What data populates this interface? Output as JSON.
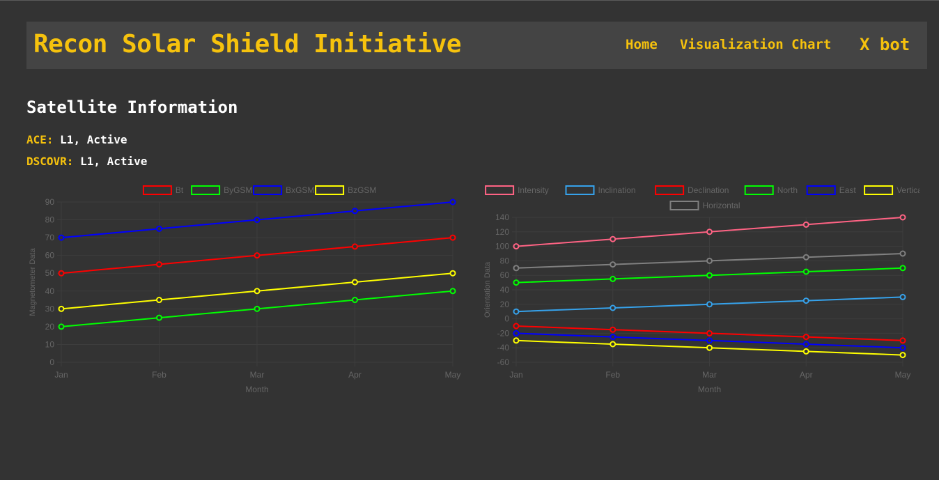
{
  "header": {
    "brand": "Recon Solar Shield Initiative",
    "nav": {
      "home": "Home",
      "visualization": "Visualization Chart",
      "bot": "X bot"
    }
  },
  "section": {
    "title": "Satellite Information"
  },
  "satellites": [
    {
      "name": "ACE:",
      "status": "L1, Active"
    },
    {
      "name": "DSCOVR:",
      "status": "L1, Active"
    }
  ],
  "colors": {
    "accent": "#f6c20d",
    "background": "#333333",
    "header_bg": "#444444"
  },
  "chart_data": [
    {
      "type": "line",
      "categories": [
        "Jan",
        "Feb",
        "Mar",
        "Apr",
        "May"
      ],
      "xlabel": "Month",
      "ylabel": "Magnetometer Data",
      "ylim": [
        0,
        90
      ],
      "yticks": [
        0,
        10,
        20,
        30,
        40,
        50,
        60,
        70,
        80,
        90
      ],
      "grid": true,
      "legend": "top",
      "series": [
        {
          "name": "Bt",
          "color": "#ff0000",
          "values": [
            50,
            55,
            60,
            65,
            70
          ]
        },
        {
          "name": "ByGSM",
          "color": "#00ff00",
          "values": [
            20,
            25,
            30,
            35,
            40
          ]
        },
        {
          "name": "BxGSM",
          "color": "#0000ff",
          "values": [
            70,
            75,
            80,
            85,
            90
          ]
        },
        {
          "name": "BzGSM",
          "color": "#ffff00",
          "values": [
            30,
            35,
            40,
            45,
            50
          ]
        }
      ]
    },
    {
      "type": "line",
      "categories": [
        "Jan",
        "Feb",
        "Mar",
        "Apr",
        "May"
      ],
      "xlabel": "Month",
      "ylabel": "Orientation Data",
      "ylim": [
        -60,
        140
      ],
      "yticks": [
        -60,
        -40,
        -20,
        0,
        20,
        40,
        60,
        80,
        100,
        120,
        140
      ],
      "grid": true,
      "legend": "top",
      "series": [
        {
          "name": "Intensity",
          "color": "#ff6384",
          "values": [
            100,
            110,
            120,
            130,
            140
          ]
        },
        {
          "name": "Inclination",
          "color": "#36a2eb",
          "values": [
            10,
            15,
            20,
            25,
            30
          ]
        },
        {
          "name": "Declination",
          "color": "#ff0000",
          "values": [
            -10,
            -15,
            -20,
            -25,
            -30
          ]
        },
        {
          "name": "North",
          "color": "#00ff00",
          "values": [
            50,
            55,
            60,
            65,
            70
          ]
        },
        {
          "name": "East",
          "color": "#0000ff",
          "values": [
            -20,
            -25,
            -30,
            -35,
            -40
          ]
        },
        {
          "name": "Vertical",
          "color": "#ffff00",
          "values": [
            -30,
            -35,
            -40,
            -45,
            -50
          ]
        },
        {
          "name": "Horizontal",
          "color": "#808080",
          "values": [
            70,
            75,
            80,
            85,
            90
          ]
        }
      ]
    }
  ]
}
